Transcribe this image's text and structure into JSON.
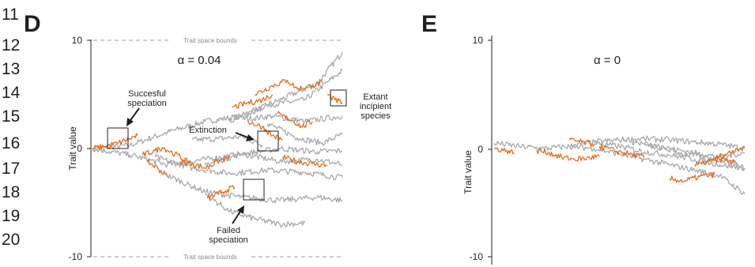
{
  "line_numbers": [
    "11",
    "12",
    "13",
    "14",
    "15",
    "16",
    "17",
    "18",
    "19",
    "20"
  ],
  "colors": {
    "gray": "#a7a9ac",
    "orange": "#e36c1f",
    "text": "#231f20",
    "bounds_line": "#a0a0a0"
  },
  "chart_data": [
    {
      "type": "line",
      "panel_label": "D",
      "title": "α = 0.04",
      "ylabel": "Trait value",
      "xlabel": "",
      "ylim": [
        -10,
        10
      ],
      "yticks": [
        "10",
        "0",
        "-10"
      ],
      "bounds_label_top": "Trait space bounds",
      "bounds_label_bottom": "Trait space bounds",
      "annotations": {
        "speciation": [
          "Succesful",
          "speciation"
        ],
        "extinction": [
          "Extinction"
        ],
        "failed": [
          "Failed",
          "speciation"
        ],
        "extant": [
          "Extant",
          "incipient",
          "species"
        ]
      },
      "x_range": [
        0,
        100
      ],
      "series": [
        {
          "color": "gray",
          "points": [
            [
              0,
              0
            ],
            [
              15,
              0.3
            ],
            [
              30,
              1.5
            ],
            [
              45,
              2.5
            ],
            [
              60,
              3.0
            ],
            [
              75,
              4.5
            ],
            [
              90,
              6.0
            ],
            [
              100,
              8.9
            ]
          ]
        },
        {
          "color": "gray",
          "points": [
            [
              55,
              2.6
            ],
            [
              70,
              4.0
            ],
            [
              85,
              4.5
            ],
            [
              100,
              7.2
            ]
          ]
        },
        {
          "color": "gray",
          "points": [
            [
              60,
              2.7
            ],
            [
              72,
              3.0
            ],
            [
              85,
              2.5
            ],
            [
              100,
              3.0
            ]
          ]
        },
        {
          "color": "gray",
          "points": [
            [
              70,
              2.3
            ],
            [
              82,
              1.0
            ],
            [
              92,
              0.5
            ],
            [
              100,
              1.3
            ]
          ]
        },
        {
          "color": "gray",
          "points": [
            [
              40,
              0.8
            ],
            [
              50,
              0.9
            ],
            [
              60,
              1.1
            ],
            [
              68,
              0.3
            ]
          ]
        },
        {
          "color": "gray",
          "points": [
            [
              0,
              0
            ],
            [
              15,
              -0.6
            ],
            [
              30,
              -1.5
            ],
            [
              45,
              -1.0
            ],
            [
              60,
              -0.5
            ],
            [
              75,
              -1.2
            ],
            [
              90,
              -1.0
            ],
            [
              100,
              -1.5
            ]
          ]
        },
        {
          "color": "gray",
          "points": [
            [
              25,
              -0.8
            ],
            [
              40,
              -1.8
            ],
            [
              55,
              -2.3
            ],
            [
              70,
              -2.0
            ],
            [
              85,
              -2.2
            ],
            [
              100,
              -2.7
            ]
          ]
        },
        {
          "color": "gray",
          "points": [
            [
              45,
              -1.5
            ],
            [
              60,
              -0.5
            ],
            [
              75,
              0.0
            ],
            [
              90,
              -0.3
            ],
            [
              100,
              -0.2
            ]
          ]
        },
        {
          "color": "gray",
          "points": [
            [
              30,
              -2.5
            ],
            [
              45,
              -4.0
            ],
            [
              60,
              -4.5
            ],
            [
              75,
              -4.8
            ],
            [
              90,
              -4.5
            ],
            [
              100,
              -4.8
            ]
          ]
        },
        {
          "color": "gray",
          "points": [
            [
              45,
              -4.2
            ],
            [
              55,
              -5.8
            ],
            [
              65,
              -6.5
            ],
            [
              75,
              -7.0
            ],
            [
              85,
              -6.9
            ]
          ]
        },
        {
          "color": "orange",
          "points": [
            [
              0,
              0
            ],
            [
              5,
              0.2
            ],
            [
              10,
              0.5
            ],
            [
              15,
              0.9
            ],
            [
              18,
              1.2
            ]
          ]
        },
        {
          "color": "orange",
          "points": [
            [
              20,
              -0.6
            ],
            [
              25,
              -0.2
            ],
            [
              28,
              0.1
            ],
            [
              33,
              -0.5
            ],
            [
              38,
              -1.2
            ]
          ]
        },
        {
          "color": "orange",
          "points": [
            [
              22,
              -1.2
            ],
            [
              26,
              -1.8
            ],
            [
              30,
              -2.6
            ]
          ]
        },
        {
          "color": "orange",
          "points": [
            [
              35,
              -1.2
            ],
            [
              40,
              -1.4
            ],
            [
              45,
              -1.8
            ],
            [
              50,
              -1.2
            ],
            [
              55,
              -0.8
            ]
          ]
        },
        {
          "color": "orange",
          "points": [
            [
              46,
              -4.6
            ],
            [
              50,
              -4.2
            ],
            [
              54,
              -3.8
            ],
            [
              57,
              -3.6
            ]
          ]
        },
        {
          "color": "orange",
          "points": [
            [
              56,
              3.8
            ],
            [
              62,
              4.2
            ],
            [
              68,
              4.5
            ],
            [
              72,
              5.0
            ]
          ]
        },
        {
          "color": "orange",
          "points": [
            [
              65,
              5.0
            ],
            [
              72,
              5.8
            ],
            [
              78,
              6.3
            ],
            [
              82,
              5.5
            ],
            [
              88,
              5.8
            ],
            [
              92,
              6.1
            ]
          ]
        },
        {
          "color": "orange",
          "points": [
            [
              74,
              3.2
            ],
            [
              80,
              2.6
            ],
            [
              84,
              2.0
            ],
            [
              88,
              2.5
            ]
          ]
        },
        {
          "color": "orange",
          "points": [
            [
              62,
              2.5
            ],
            [
              68,
              2.0
            ],
            [
              72,
              1.2
            ],
            [
              76,
              0.8
            ]
          ]
        },
        {
          "color": "orange",
          "points": [
            [
              94,
              5.0
            ],
            [
              97,
              4.5
            ],
            [
              100,
              4.2
            ]
          ]
        },
        {
          "color": "orange",
          "points": [
            [
              76,
              -0.8
            ],
            [
              82,
              -1.2
            ],
            [
              88,
              -1.4
            ],
            [
              94,
              -1.6
            ]
          ]
        }
      ]
    },
    {
      "type": "line",
      "panel_label": "E",
      "title": "α = 0",
      "ylabel": "Trait value",
      "xlabel": "",
      "ylim": [
        -10,
        10
      ],
      "yticks": [
        "10",
        "0",
        "-10"
      ],
      "x_range": [
        0,
        100
      ],
      "series": [
        {
          "color": "gray",
          "points": [
            [
              0,
              0.5
            ],
            [
              10,
              0.2
            ],
            [
              20,
              0.0
            ],
            [
              30,
              0.2
            ],
            [
              40,
              0.6
            ],
            [
              50,
              0.8
            ],
            [
              60,
              0.9
            ],
            [
              70,
              0.8
            ],
            [
              80,
              0.6
            ],
            [
              90,
              0.4
            ],
            [
              100,
              0.0
            ]
          ]
        },
        {
          "color": "gray",
          "points": [
            [
              30,
              0.2
            ],
            [
              40,
              0.0
            ],
            [
              50,
              -0.5
            ],
            [
              60,
              -1.0
            ],
            [
              70,
              -1.5
            ],
            [
              80,
              -2.0
            ],
            [
              90,
              -2.5
            ],
            [
              100,
              -4.2
            ]
          ]
        },
        {
          "color": "gray",
          "points": [
            [
              40,
              0.5
            ],
            [
              50,
              0.2
            ],
            [
              60,
              -0.3
            ],
            [
              70,
              -0.6
            ],
            [
              80,
              -1.0
            ],
            [
              90,
              -1.5
            ],
            [
              100,
              -1.8
            ]
          ]
        },
        {
          "color": "gray",
          "points": [
            [
              55,
              0.6
            ],
            [
              65,
              0.2
            ],
            [
              75,
              -0.5
            ],
            [
              85,
              -0.8
            ],
            [
              95,
              -1.2
            ],
            [
              100,
              -2.0
            ]
          ]
        },
        {
          "color": "gray",
          "points": [
            [
              60,
              0.3
            ],
            [
              70,
              0.0
            ],
            [
              80,
              -0.4
            ],
            [
              90,
              -0.8
            ],
            [
              100,
              -0.4
            ]
          ]
        },
        {
          "color": "orange",
          "points": [
            [
              0,
              0.0
            ],
            [
              5,
              -0.2
            ],
            [
              8,
              -0.4
            ]
          ]
        },
        {
          "color": "orange",
          "points": [
            [
              17,
              -0.2
            ],
            [
              22,
              -0.4
            ],
            [
              27,
              -0.8
            ],
            [
              32,
              -1.0
            ],
            [
              37,
              -0.9
            ],
            [
              42,
              -0.7
            ]
          ]
        },
        {
          "color": "orange",
          "points": [
            [
              30,
              0.8
            ],
            [
              35,
              0.6
            ],
            [
              40,
              0.4
            ]
          ]
        },
        {
          "color": "orange",
          "points": [
            [
              42,
              0.2
            ],
            [
              48,
              -0.2
            ],
            [
              54,
              -0.5
            ],
            [
              60,
              -0.8
            ]
          ]
        },
        {
          "color": "orange",
          "points": [
            [
              70,
              -2.8
            ],
            [
              76,
              -3.0
            ],
            [
              82,
              -2.6
            ],
            [
              88,
              -2.4
            ]
          ]
        },
        {
          "color": "orange",
          "points": [
            [
              80,
              -1.5
            ],
            [
              86,
              -1.2
            ],
            [
              92,
              -1.0
            ],
            [
              97,
              -1.4
            ]
          ]
        },
        {
          "color": "orange",
          "points": [
            [
              88,
              -0.9
            ],
            [
              93,
              -0.5
            ],
            [
              97,
              0.0
            ],
            [
              100,
              0.2
            ]
          ]
        }
      ]
    }
  ]
}
